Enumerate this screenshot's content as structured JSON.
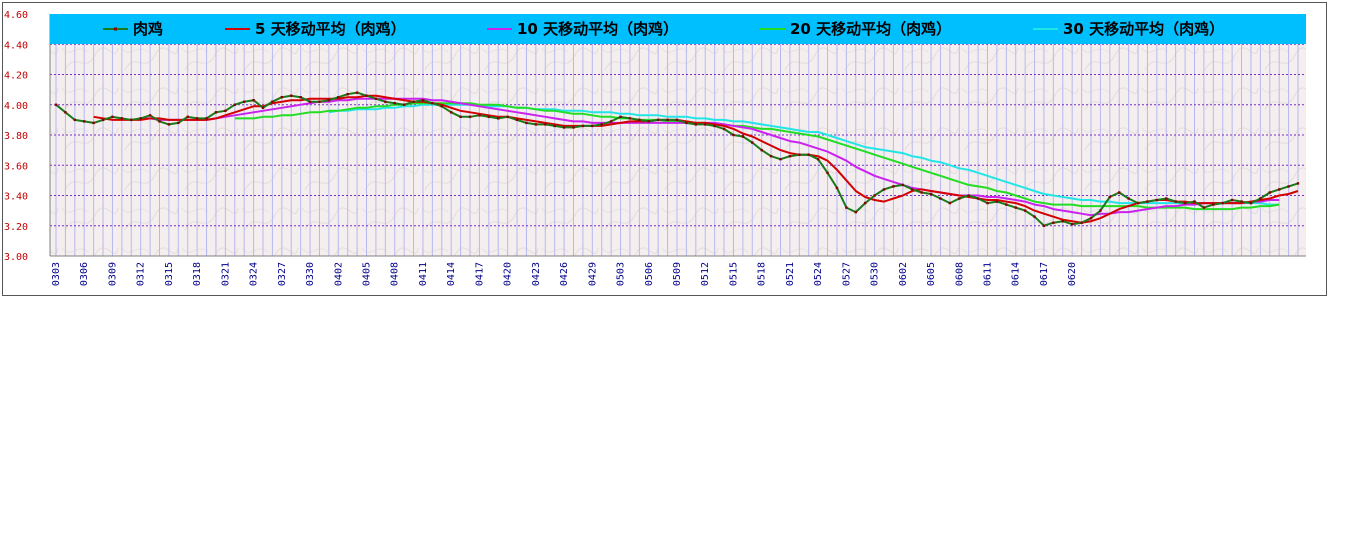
{
  "chart_data": {
    "type": "line",
    "title": "",
    "xlabel": "",
    "ylabel": "",
    "ylim": [
      3.0,
      4.6
    ],
    "y_ticks": [
      "3.00",
      "3.20",
      "3.40",
      "3.60",
      "3.80",
      "4.00",
      "4.20",
      "4.40",
      "4.60"
    ],
    "x_tick_labels": [
      "0303",
      "0306",
      "0309",
      "0312",
      "0315",
      "0318",
      "0321",
      "0324",
      "0327",
      "0330",
      "0402",
      "0405",
      "0408",
      "0411",
      "0414",
      "0417",
      "0420",
      "0423",
      "0426",
      "0429",
      "0503",
      "0506",
      "0509",
      "0512",
      "0515",
      "0518",
      "0521",
      "0524",
      "0527",
      "0530",
      "0602",
      "0605",
      "0608",
      "0611",
      "0614",
      "0617",
      "0620"
    ],
    "grid": true,
    "legend_position": "top",
    "colors": {
      "legend_bg": "#00bfff",
      "grid_h": "#7b2fbe",
      "grid_v": "#b8b8f0",
      "plot_bg": "#f4eeee"
    },
    "series": [
      {
        "name": "肉鸡",
        "color": "#1a7a1a",
        "marker_color": "#8b0000",
        "width": 2,
        "values": [
          4.0,
          3.95,
          3.9,
          3.89,
          3.88,
          3.9,
          3.92,
          3.91,
          3.9,
          3.91,
          3.93,
          3.89,
          3.87,
          3.88,
          3.92,
          3.91,
          3.91,
          3.95,
          3.96,
          4.0,
          4.02,
          4.03,
          3.98,
          4.02,
          4.05,
          4.06,
          4.05,
          4.02,
          4.02,
          4.03,
          4.05,
          4.07,
          4.08,
          4.06,
          4.04,
          4.02,
          4.01,
          4.0,
          4.02,
          4.03,
          4.01,
          3.99,
          3.95,
          3.92,
          3.92,
          3.93,
          3.92,
          3.91,
          3.92,
          3.9,
          3.88,
          3.87,
          3.87,
          3.86,
          3.85,
          3.85,
          3.86,
          3.86,
          3.87,
          3.89,
          3.92,
          3.91,
          3.9,
          3.89,
          3.9,
          3.9,
          3.9,
          3.88,
          3.87,
          3.87,
          3.86,
          3.84,
          3.8,
          3.79,
          3.75,
          3.7,
          3.66,
          3.64,
          3.66,
          3.67,
          3.67,
          3.64,
          3.55,
          3.45,
          3.32,
          3.29,
          3.35,
          3.4,
          3.44,
          3.46,
          3.47,
          3.44,
          3.42,
          3.41,
          3.38,
          3.35,
          3.38,
          3.4,
          3.38,
          3.35,
          3.36,
          3.34,
          3.32,
          3.3,
          3.26,
          3.2,
          3.22,
          3.23,
          3.21,
          3.22,
          3.25,
          3.3,
          3.39,
          3.42,
          3.38,
          3.35,
          3.36,
          3.37,
          3.38,
          3.36,
          3.35,
          3.36,
          3.32,
          3.34,
          3.35,
          3.37,
          3.36,
          3.35,
          3.38,
          3.42,
          3.44,
          3.46,
          3.48
        ]
      },
      {
        "name": "5 天移动平均（肉鸡）",
        "color": "#d40000",
        "width": 2,
        "values": [
          null,
          null,
          null,
          null,
          3.92,
          3.91,
          3.9,
          3.9,
          3.9,
          3.9,
          3.91,
          3.91,
          3.9,
          3.9,
          3.9,
          3.9,
          3.9,
          3.91,
          3.93,
          3.95,
          3.97,
          3.99,
          3.99,
          4.01,
          4.02,
          4.03,
          4.03,
          4.04,
          4.04,
          4.04,
          4.04,
          4.05,
          4.05,
          4.06,
          4.06,
          4.05,
          4.04,
          4.03,
          4.02,
          4.02,
          4.01,
          4.0,
          3.98,
          3.96,
          3.95,
          3.94,
          3.93,
          3.92,
          3.92,
          3.91,
          3.9,
          3.89,
          3.88,
          3.87,
          3.86,
          3.86,
          3.86,
          3.86,
          3.86,
          3.87,
          3.88,
          3.89,
          3.89,
          3.89,
          3.9,
          3.9,
          3.9,
          3.89,
          3.88,
          3.88,
          3.87,
          3.86,
          3.84,
          3.81,
          3.79,
          3.76,
          3.73,
          3.7,
          3.68,
          3.67,
          3.67,
          3.66,
          3.63,
          3.57,
          3.5,
          3.43,
          3.39,
          3.37,
          3.36,
          3.38,
          3.4,
          3.43,
          3.44,
          3.43,
          3.42,
          3.41,
          3.4,
          3.39,
          3.38,
          3.37,
          3.37,
          3.36,
          3.35,
          3.33,
          3.3,
          3.28,
          3.26,
          3.24,
          3.23,
          3.22,
          3.23,
          3.25,
          3.28,
          3.31,
          3.33,
          3.35,
          3.36,
          3.37,
          3.37,
          3.36,
          3.36,
          3.35,
          3.35,
          3.35,
          3.35,
          3.35,
          3.35,
          3.36,
          3.37,
          3.38,
          3.4,
          3.41,
          3.43
        ]
      },
      {
        "name": "10 天移动平均（肉鸡）",
        "color": "#cc22ee",
        "width": 2,
        "values": [
          null,
          null,
          null,
          null,
          null,
          null,
          null,
          null,
          null,
          3.91,
          3.91,
          3.9,
          3.9,
          3.9,
          3.9,
          3.9,
          3.9,
          3.91,
          3.92,
          3.93,
          3.94,
          3.95,
          3.96,
          3.97,
          3.98,
          3.99,
          4.0,
          4.01,
          4.02,
          4.02,
          4.03,
          4.03,
          4.04,
          4.04,
          4.04,
          4.04,
          4.04,
          4.04,
          4.04,
          4.04,
          4.03,
          4.03,
          4.02,
          4.01,
          4.0,
          3.99,
          3.98,
          3.97,
          3.96,
          3.95,
          3.94,
          3.93,
          3.92,
          3.91,
          3.9,
          3.89,
          3.89,
          3.88,
          3.88,
          3.88,
          3.88,
          3.88,
          3.88,
          3.88,
          3.88,
          3.88,
          3.88,
          3.88,
          3.88,
          3.88,
          3.88,
          3.87,
          3.86,
          3.85,
          3.84,
          3.82,
          3.8,
          3.78,
          3.76,
          3.75,
          3.73,
          3.71,
          3.69,
          3.66,
          3.63,
          3.59,
          3.56,
          3.53,
          3.51,
          3.49,
          3.47,
          3.45,
          3.44,
          3.43,
          3.42,
          3.41,
          3.4,
          3.4,
          3.4,
          3.39,
          3.39,
          3.38,
          3.37,
          3.36,
          3.34,
          3.33,
          3.31,
          3.3,
          3.29,
          3.28,
          3.27,
          3.28,
          3.28,
          3.29,
          3.29,
          3.3,
          3.31,
          3.32,
          3.33,
          3.33,
          3.34,
          3.34,
          3.35,
          3.35,
          3.35,
          3.35,
          3.35,
          3.36,
          3.36,
          3.37,
          3.37
        ]
      },
      {
        "name": "20 天移动平均（肉鸡）",
        "color": "#22dd22",
        "width": 2,
        "values": [
          null,
          null,
          null,
          null,
          null,
          null,
          null,
          null,
          null,
          null,
          null,
          null,
          null,
          null,
          null,
          null,
          null,
          null,
          null,
          3.91,
          3.91,
          3.91,
          3.92,
          3.92,
          3.93,
          3.93,
          3.94,
          3.95,
          3.95,
          3.96,
          3.96,
          3.97,
          3.98,
          3.98,
          3.99,
          3.99,
          4.0,
          4.0,
          4.01,
          4.01,
          4.01,
          4.01,
          4.01,
          4.01,
          4.01,
          4.0,
          4.0,
          4.0,
          3.99,
          3.98,
          3.98,
          3.97,
          3.96,
          3.96,
          3.95,
          3.94,
          3.94,
          3.93,
          3.92,
          3.92,
          3.91,
          3.91,
          3.9,
          3.9,
          3.9,
          3.89,
          3.89,
          3.89,
          3.88,
          3.88,
          3.87,
          3.87,
          3.86,
          3.86,
          3.85,
          3.84,
          3.84,
          3.83,
          3.82,
          3.81,
          3.8,
          3.79,
          3.77,
          3.75,
          3.73,
          3.71,
          3.69,
          3.67,
          3.65,
          3.63,
          3.61,
          3.59,
          3.57,
          3.55,
          3.53,
          3.51,
          3.49,
          3.47,
          3.46,
          3.45,
          3.43,
          3.42,
          3.4,
          3.38,
          3.36,
          3.35,
          3.34,
          3.34,
          3.34,
          3.33,
          3.33,
          3.33,
          3.33,
          3.33,
          3.33,
          3.33,
          3.32,
          3.32,
          3.32,
          3.32,
          3.32,
          3.31,
          3.31,
          3.31,
          3.31,
          3.31,
          3.32,
          3.32,
          3.33,
          3.33,
          3.34
        ]
      },
      {
        "name": "30 天移动平均（肉鸡）",
        "color": "#22e6e6",
        "width": 2,
        "values": [
          null,
          null,
          null,
          null,
          null,
          null,
          null,
          null,
          null,
          null,
          null,
          null,
          null,
          null,
          null,
          null,
          null,
          null,
          null,
          null,
          null,
          null,
          null,
          null,
          null,
          null,
          null,
          null,
          null,
          3.95,
          3.96,
          3.96,
          3.97,
          3.97,
          3.97,
          3.98,
          3.98,
          3.99,
          3.99,
          4.0,
          4.0,
          4.0,
          4.0,
          4.0,
          4.0,
          4.0,
          3.99,
          3.99,
          3.99,
          3.98,
          3.98,
          3.97,
          3.97,
          3.97,
          3.96,
          3.96,
          3.96,
          3.95,
          3.95,
          3.95,
          3.94,
          3.94,
          3.93,
          3.93,
          3.93,
          3.92,
          3.92,
          3.92,
          3.91,
          3.91,
          3.9,
          3.9,
          3.89,
          3.89,
          3.88,
          3.87,
          3.86,
          3.85,
          3.84,
          3.83,
          3.82,
          3.82,
          3.8,
          3.78,
          3.76,
          3.74,
          3.72,
          3.71,
          3.7,
          3.69,
          3.68,
          3.66,
          3.65,
          3.63,
          3.62,
          3.6,
          3.58,
          3.57,
          3.55,
          3.53,
          3.51,
          3.49,
          3.47,
          3.45,
          3.43,
          3.41,
          3.4,
          3.39,
          3.38,
          3.37,
          3.37,
          3.36,
          3.36,
          3.35,
          3.35,
          3.35,
          3.35,
          3.35,
          3.35,
          3.35,
          3.35,
          3.35,
          3.35,
          3.35,
          3.35,
          3.35,
          3.35,
          3.35,
          3.35,
          3.34,
          3.34
        ]
      }
    ]
  }
}
